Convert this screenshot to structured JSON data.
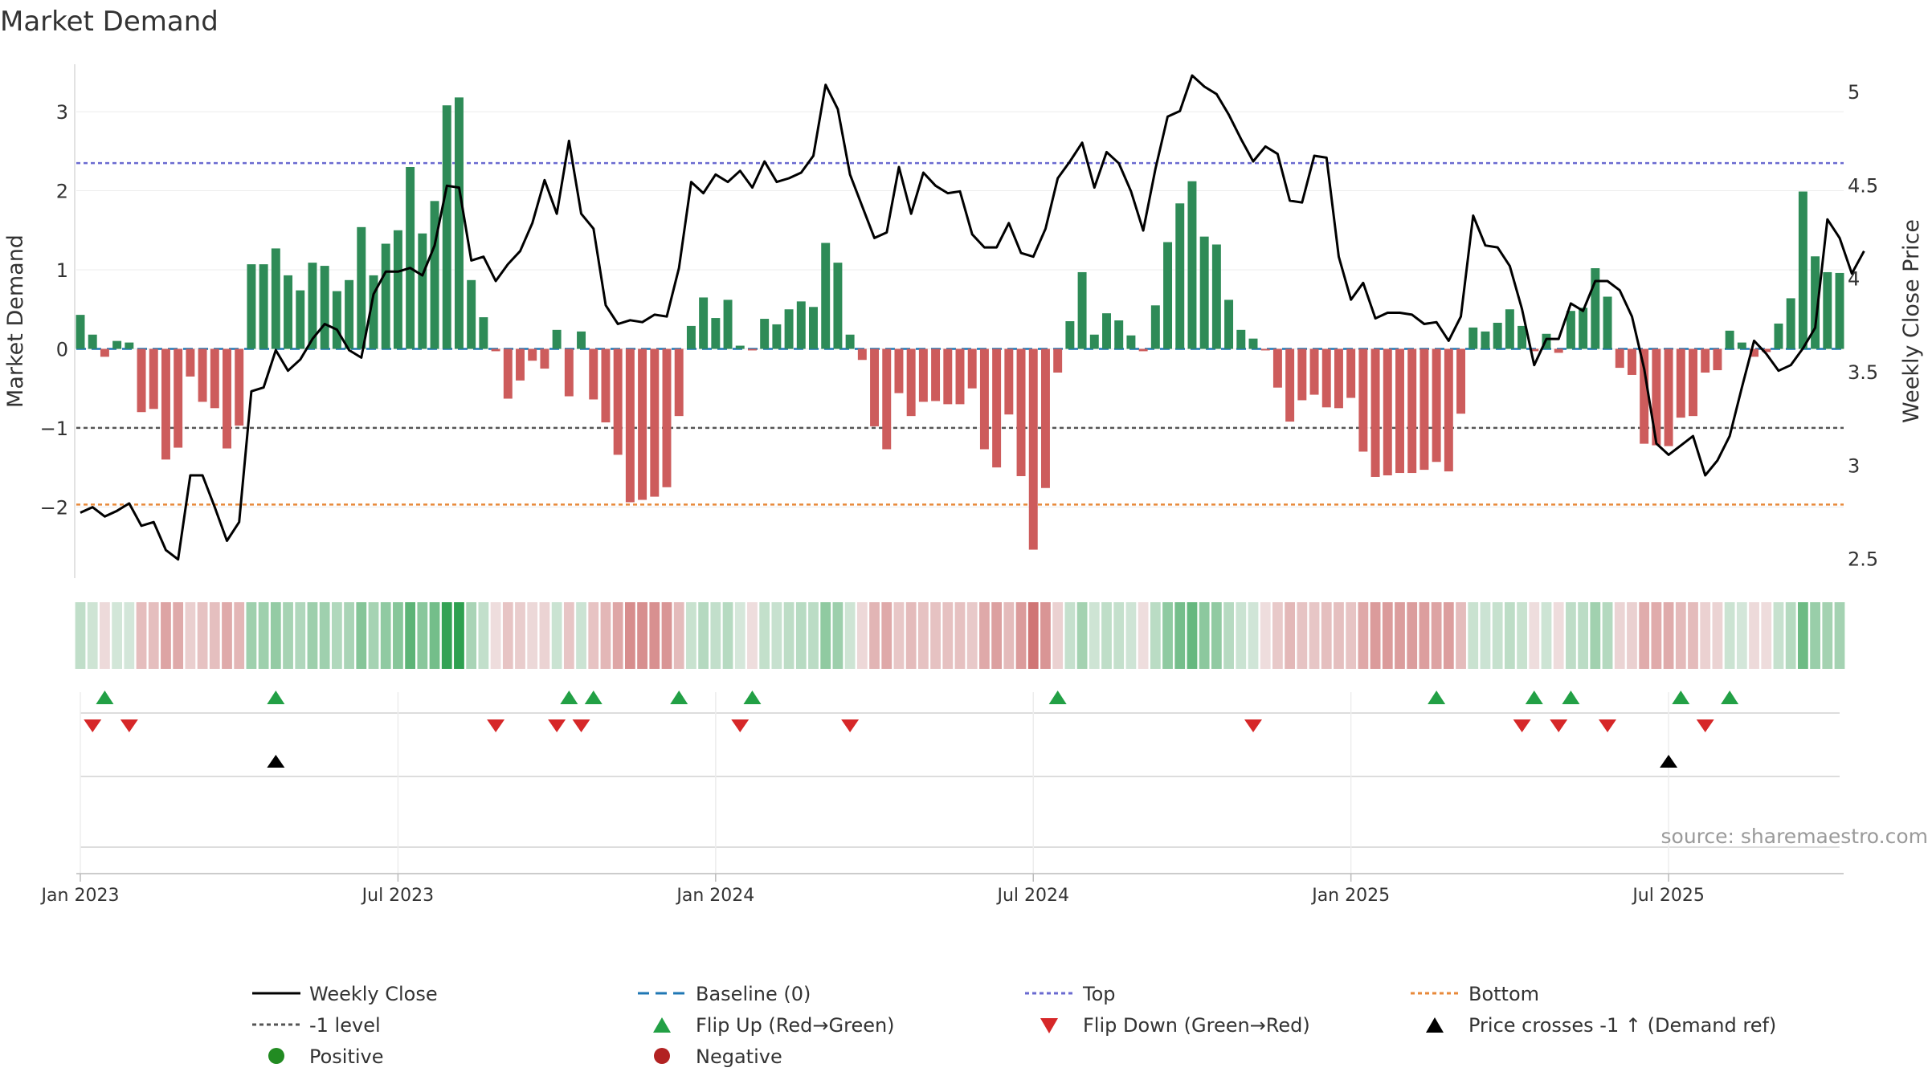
{
  "chart_data": {
    "type": "bar",
    "title": "Market Demand",
    "ylabel_left": "Market Demand",
    "ylabel_right": "Weekly Close Price",
    "source": "source: sharemaestro.com",
    "ylim_left": [
      -2.9,
      3.6
    ],
    "ylim_right": [
      2.4,
      5.15
    ],
    "yticks_left": [
      {
        "v": 3,
        "label": "3"
      },
      {
        "v": 2,
        "label": "2"
      },
      {
        "v": 1,
        "label": "1"
      },
      {
        "v": 0,
        "label": "0"
      },
      {
        "v": -1,
        "label": "−1"
      },
      {
        "v": -2,
        "label": "−2"
      }
    ],
    "yticks_right": [
      {
        "v": 5,
        "label": "5"
      },
      {
        "v": 4.5,
        "label": "4.5"
      },
      {
        "v": 4,
        "label": "4"
      },
      {
        "v": 3.5,
        "label": "3.5"
      },
      {
        "v": 3,
        "label": "3"
      },
      {
        "v": 2.5,
        "label": "2.5"
      }
    ],
    "xticks": [
      {
        "week": 1,
        "label": "Jan 2023"
      },
      {
        "week": 27,
        "label": "Jul 2023"
      },
      {
        "week": 53,
        "label": "Jan 2024"
      },
      {
        "week": 79,
        "label": "Jul 2024"
      },
      {
        "week": 105,
        "label": "Jan 2025"
      },
      {
        "week": 131,
        "label": "Jul 2025"
      }
    ],
    "weeks": 145,
    "top_level": 2.35,
    "bottom_level": -1.97,
    "minus_one_level": -1,
    "colors": {
      "positive": "#2e8b57",
      "negative": "#cd5c5c",
      "price": "#000000",
      "top": "#6a6ad0",
      "bottom": "#e8893a",
      "baseline": "#1f77b4",
      "minus_one": "#555555",
      "flip_up": "#22a045",
      "flip_down": "#d62728",
      "cross": "#000000",
      "legend_positive": "#228b22",
      "legend_negative": "#b22222"
    },
    "demand": [
      0.43,
      0.18,
      -0.1,
      0.1,
      0.08,
      -0.8,
      -0.76,
      -1.4,
      -1.25,
      -0.35,
      -0.67,
      -0.75,
      -1.26,
      -0.97,
      1.07,
      1.07,
      1.27,
      0.93,
      0.74,
      1.09,
      1.05,
      0.73,
      0.87,
      1.54,
      0.93,
      1.33,
      1.5,
      2.3,
      1.46,
      1.87,
      3.08,
      3.18,
      0.87,
      0.4,
      -0.03,
      -0.63,
      -0.4,
      -0.15,
      -0.25,
      0.24,
      -0.6,
      0.22,
      -0.64,
      -0.93,
      -1.34,
      -1.94,
      -1.91,
      -1.87,
      -1.75,
      -0.85,
      0.29,
      0.65,
      0.39,
      0.62,
      0.04,
      -0.02,
      0.38,
      0.31,
      0.5,
      0.6,
      0.53,
      1.34,
      1.09,
      0.18,
      -0.14,
      -0.98,
      -1.27,
      -0.56,
      -0.85,
      -0.67,
      -0.66,
      -0.7,
      -0.7,
      -0.5,
      -1.27,
      -1.5,
      -0.83,
      -1.61,
      -2.54,
      -1.76,
      -0.3,
      0.35,
      0.97,
      0.18,
      0.45,
      0.36,
      0.17,
      -0.03,
      0.55,
      1.35,
      1.84,
      2.12,
      1.42,
      1.32,
      0.62,
      0.24,
      0.13,
      -0.02,
      -0.49,
      -0.92,
      -0.65,
      -0.58,
      -0.74,
      -0.75,
      -0.62,
      -1.3,
      -1.62,
      -1.6,
      -1.57,
      -1.57,
      -1.53,
      -1.43,
      -1.55,
      -0.82,
      0.27,
      0.22,
      0.33,
      0.5,
      0.29,
      -0.03,
      0.19,
      -0.05,
      0.48,
      0.52,
      1.02,
      0.66,
      -0.24,
      -0.33,
      -1.2,
      -1.22,
      -1.23,
      -0.87,
      -0.85,
      -0.3,
      -0.27,
      0.23,
      0.08,
      -0.1,
      -0.04,
      0.32,
      0.64,
      1.99,
      1.17,
      0.97,
      0.96
    ],
    "price": [
      2.75,
      2.78,
      2.73,
      2.76,
      2.8,
      2.68,
      2.7,
      2.55,
      2.5,
      2.95,
      2.95,
      2.78,
      2.6,
      2.7,
      3.4,
      3.42,
      3.62,
      3.51,
      3.57,
      3.68,
      3.76,
      3.73,
      3.62,
      3.58,
      3.92,
      4.04,
      4.04,
      4.06,
      4.02,
      4.18,
      4.5,
      4.49,
      4.1,
      4.12,
      3.99,
      4.08,
      4.15,
      4.3,
      4.53,
      4.35,
      4.74,
      4.35,
      4.27,
      3.86,
      3.76,
      3.78,
      3.77,
      3.81,
      3.8,
      4.06,
      4.52,
      4.46,
      4.56,
      4.52,
      4.58,
      4.49,
      4.63,
      4.52,
      4.54,
      4.57,
      4.66,
      5.04,
      4.91,
      4.56,
      4.39,
      4.22,
      4.25,
      4.6,
      4.35,
      4.57,
      4.5,
      4.46,
      4.47,
      4.24,
      4.17,
      4.17,
      4.3,
      4.14,
      4.12,
      4.27,
      4.54,
      4.63,
      4.73,
      4.49,
      4.68,
      4.62,
      4.47,
      4.26,
      4.59,
      4.87,
      4.9,
      5.09,
      5.03,
      4.99,
      4.88,
      4.75,
      4.63,
      4.71,
      4.67,
      4.42,
      4.41,
      4.66,
      4.65,
      4.12,
      3.89,
      3.98,
      3.79,
      3.82,
      3.82,
      3.81,
      3.76,
      3.77,
      3.67,
      3.8,
      4.34,
      4.18,
      4.17,
      4.07,
      3.84,
      3.54,
      3.68,
      3.68,
      3.87,
      3.83,
      3.99,
      3.99,
      3.94,
      3.8,
      3.52,
      3.12,
      3.06,
      3.11,
      3.16,
      2.95,
      3.03,
      3.16,
      3.42,
      3.67,
      3.6,
      3.51,
      3.54,
      3.63,
      3.74,
      4.32,
      4.22,
      4.03,
      4.15
    ],
    "flip_up": [
      3,
      17,
      41,
      43,
      50,
      56,
      81,
      112,
      120,
      123,
      132,
      136
    ],
    "flip_down": [
      2,
      5,
      35,
      40,
      42,
      55,
      64,
      97,
      119,
      122,
      126,
      134
    ],
    "crosses": [
      17,
      131
    ]
  },
  "legend": {
    "weekly_close": "Weekly Close",
    "baseline": "Baseline (0)",
    "top": "Top",
    "bottom": "Bottom",
    "minus_one": "-1 level",
    "flip_up": "Flip Up (Red→Green)",
    "flip_down": "Flip Down (Green→Red)",
    "price_cross": "Price crosses -1 ↑ (Demand ref)",
    "positive": "Positive",
    "negative": "Negative"
  }
}
